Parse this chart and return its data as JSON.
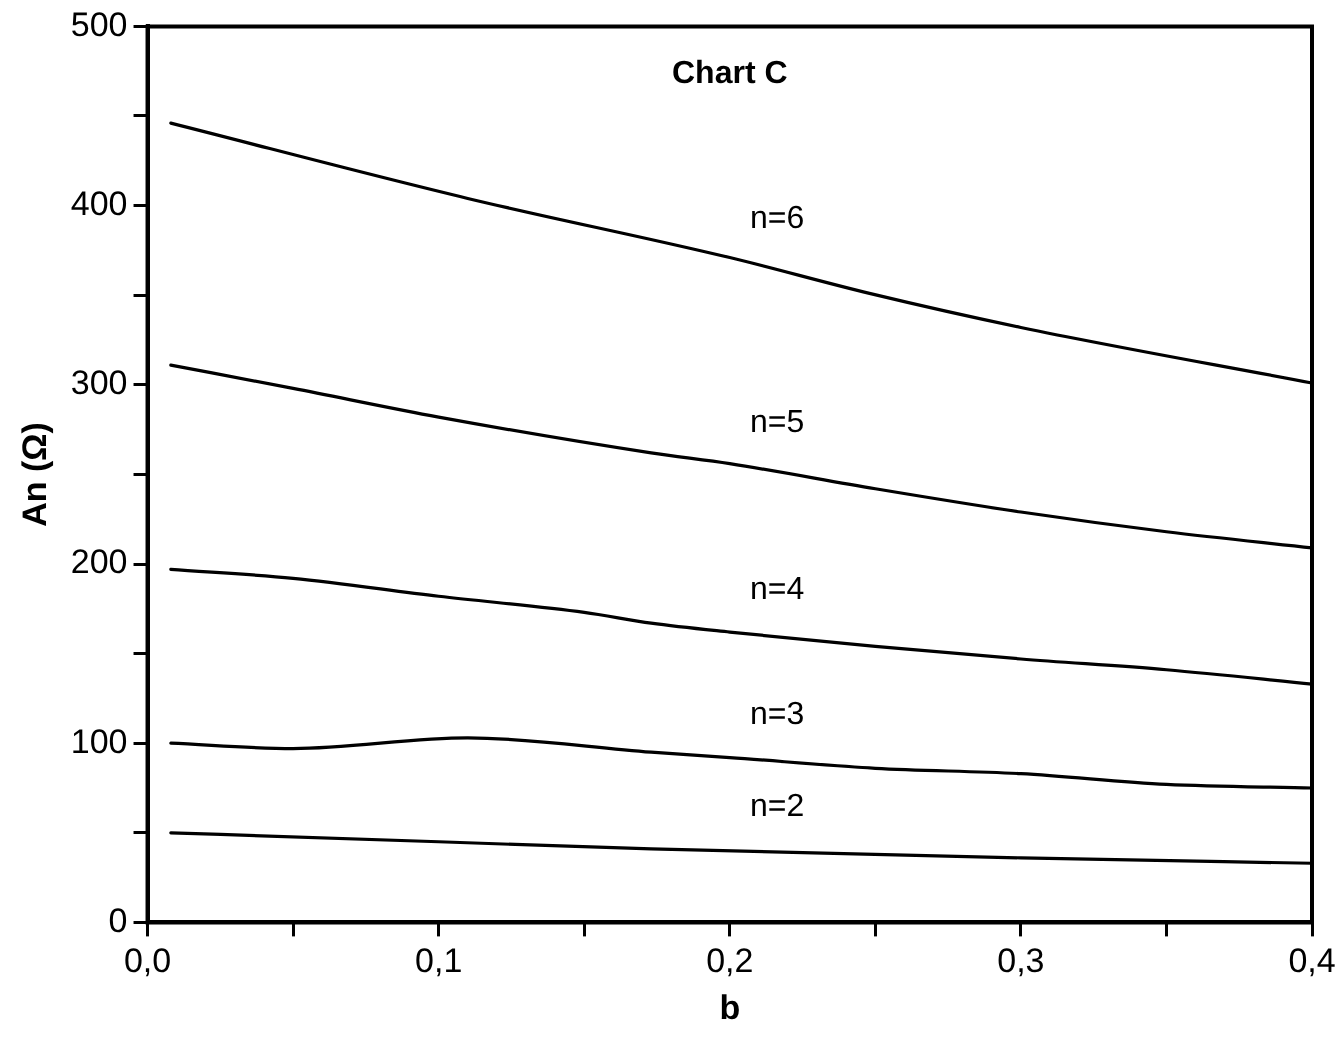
{
  "chart_data": {
    "type": "line",
    "title": "Chart C",
    "xlabel": "b",
    "ylabel": "An (Ω)",
    "xlim": [
      0,
      0.4
    ],
    "ylim": [
      0,
      500
    ],
    "xticks": [
      {
        "value": 0,
        "label": "0,0"
      },
      {
        "value": 0.05,
        "label": null
      },
      {
        "value": 0.1,
        "label": "0,1"
      },
      {
        "value": 0.15,
        "label": null
      },
      {
        "value": 0.2,
        "label": "0,2"
      },
      {
        "value": 0.25,
        "label": null
      },
      {
        "value": 0.3,
        "label": "0,3"
      },
      {
        "value": 0.35,
        "label": null
      },
      {
        "value": 0.4,
        "label": "0,4"
      }
    ],
    "yticks": [
      0,
      {
        "value": 50,
        "label": null
      },
      100,
      {
        "value": 150,
        "label": null
      },
      200,
      {
        "value": 250,
        "label": null
      },
      300,
      {
        "value": 350,
        "label": null
      },
      400,
      {
        "value": 450,
        "label": null
      },
      500
    ],
    "grid": false,
    "legend": false,
    "marker": "none",
    "line_style": "solid",
    "series": [
      {
        "name": "n=6",
        "color": "#000000",
        "x": [
          0.008,
          0.11,
          0.2,
          0.248,
          0.3,
          0.4
        ],
        "values": [
          446,
          404,
          371,
          351,
          332,
          301
        ]
      },
      {
        "name": "n=5",
        "color": "#000000",
        "x": [
          0.008,
          0.05,
          0.1,
          0.173,
          0.2,
          0.25,
          0.3,
          0.35,
          0.4
        ],
        "values": [
          311,
          298,
          282,
          262,
          256,
          242,
          229,
          218,
          209
        ]
      },
      {
        "name": "n=4",
        "color": "#000000",
        "x": [
          0.008,
          0.05,
          0.1,
          0.15,
          0.173,
          0.2,
          0.25,
          0.3,
          0.35,
          0.4
        ],
        "values": [
          197,
          192,
          182,
          173,
          167,
          162,
          154,
          147,
          141,
          133
        ]
      },
      {
        "name": "n=3",
        "color": "#000000",
        "x": [
          0.008,
          0.05,
          0.11,
          0.173,
          0.2,
          0.25,
          0.3,
          0.35,
          0.4
        ],
        "values": [
          100,
          97,
          103,
          95,
          92,
          86,
          83,
          77,
          75
        ]
      },
      {
        "name": "n=2",
        "color": "#000000",
        "x": [
          0.008,
          0.1,
          0.173,
          0.3,
          0.4
        ],
        "values": [
          50,
          45,
          41,
          36,
          33
        ]
      }
    ]
  }
}
